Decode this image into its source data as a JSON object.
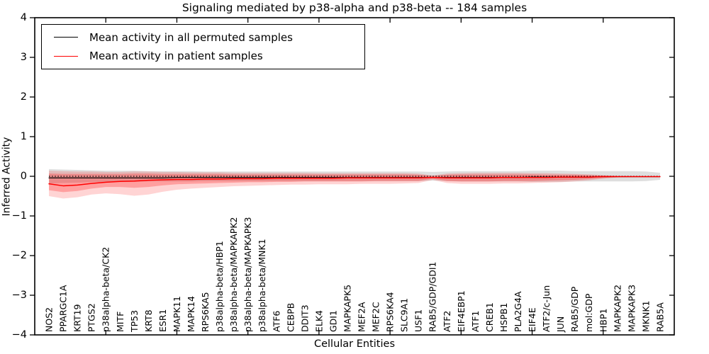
{
  "chart_data": {
    "type": "line",
    "title": "Signaling mediated by p38-alpha and p38-beta -- 184 samples",
    "xlabel": "Cellular Entities",
    "ylabel": "Inferred Activity",
    "ylim": [
      -4,
      4
    ],
    "ytick_values": [
      4,
      3,
      2,
      1,
      0,
      -1,
      -2,
      -3,
      -4
    ],
    "ytick_labels": [
      "4",
      "3",
      "2",
      "1",
      "0",
      "−1",
      "−2",
      "−3",
      "−4"
    ],
    "x_axis_range": [
      0,
      45
    ],
    "x_minor_tick_positions": [
      5,
      10,
      15,
      20,
      25,
      30,
      35,
      40
    ],
    "grid": false,
    "legend_position": "upper left",
    "categories": [
      "NOS2",
      "PPARGC1A",
      "KRT19",
      "PTGS2",
      "p38alpha-beta/CK2",
      "MITF",
      "TP53",
      "KRT8",
      "ESR1",
      "MAPK11",
      "MAPK14",
      "RPS6KA5",
      "p38alpha-beta/HBP1",
      "p38alpha-beta/MAPKAPK2",
      "p38alpha-beta/MAPKAPK3",
      "p38alpha-beta/MNK1",
      "ATF6",
      "CEBPB",
      "DDIT3",
      "ELK4",
      "GDI1",
      "MAPKAPK5",
      "MEF2A",
      "MEF2C",
      "RPS6KA4",
      "SLC9A1",
      "USF1",
      "RAB5/GDP/GDI1",
      "ATF2",
      "EIF4EBP1",
      "ATF1",
      "CREB1",
      "HSPB1",
      "PLA2G4A",
      "EIF4E",
      "ATF2/c-Jun",
      "JUN",
      "RAB5/GDP",
      "mol:GDP",
      "HBP1",
      "MAPKAPK2",
      "MAPKAPK3",
      "MKNK1",
      "RAB5A"
    ],
    "series": [
      {
        "name": "Mean activity in all permuted samples",
        "color": "#000000",
        "style": "solid",
        "width": 1.2,
        "values": [
          -0.04,
          -0.04,
          -0.04,
          -0.04,
          -0.04,
          -0.04,
          -0.04,
          -0.04,
          -0.04,
          -0.03,
          -0.03,
          -0.03,
          -0.03,
          -0.03,
          -0.03,
          -0.03,
          -0.03,
          -0.03,
          -0.03,
          -0.03,
          -0.03,
          -0.03,
          -0.03,
          -0.03,
          -0.03,
          -0.03,
          -0.03,
          -0.03,
          -0.03,
          -0.03,
          -0.03,
          -0.03,
          -0.03,
          -0.03,
          -0.02,
          -0.02,
          -0.02,
          -0.02,
          -0.02,
          -0.01,
          -0.01,
          -0.01,
          -0.01,
          -0.01
        ]
      },
      {
        "name": "Mean activity in patient samples",
        "color": "#ff0000",
        "style": "solid",
        "width": 1.5,
        "values": [
          -0.19,
          -0.24,
          -0.22,
          -0.18,
          -0.15,
          -0.13,
          -0.12,
          -0.1,
          -0.09,
          -0.08,
          -0.08,
          -0.07,
          -0.07,
          -0.06,
          -0.06,
          -0.06,
          -0.05,
          -0.05,
          -0.05,
          -0.05,
          -0.05,
          -0.04,
          -0.04,
          -0.04,
          -0.04,
          -0.04,
          -0.04,
          -0.03,
          -0.04,
          -0.04,
          -0.04,
          -0.04,
          -0.03,
          -0.03,
          -0.03,
          -0.03,
          -0.02,
          -0.02,
          -0.02,
          -0.01,
          -0.01,
          -0.01,
          -0.01,
          -0.01
        ]
      }
    ],
    "bands": [
      {
        "name": "permuted-samples-range",
        "color": "rgba(0,0,0,0.13)",
        "high": [
          0.18,
          0.17,
          0.16,
          0.15,
          0.14,
          0.14,
          0.14,
          0.13,
          0.13,
          0.13,
          0.13,
          0.12,
          0.12,
          0.12,
          0.12,
          0.12,
          0.12,
          0.12,
          0.12,
          0.12,
          0.12,
          0.12,
          0.12,
          0.12,
          0.12,
          0.12,
          0.12,
          0.11,
          0.12,
          0.13,
          0.13,
          0.13,
          0.13,
          0.13,
          0.14,
          0.14,
          0.14,
          0.13,
          0.13,
          0.13,
          0.13,
          0.13,
          0.12,
          0.09
        ],
        "low": [
          -0.18,
          -0.17,
          -0.16,
          -0.15,
          -0.14,
          -0.14,
          -0.14,
          -0.13,
          -0.13,
          -0.13,
          -0.13,
          -0.12,
          -0.12,
          -0.12,
          -0.12,
          -0.12,
          -0.12,
          -0.12,
          -0.12,
          -0.12,
          -0.12,
          -0.12,
          -0.12,
          -0.12,
          -0.12,
          -0.12,
          -0.12,
          -0.11,
          -0.12,
          -0.13,
          -0.13,
          -0.13,
          -0.13,
          -0.13,
          -0.14,
          -0.14,
          -0.14,
          -0.13,
          -0.13,
          -0.13,
          -0.13,
          -0.13,
          -0.12,
          -0.09
        ]
      },
      {
        "name": "patient-samples-outer-band",
        "color": "rgba(255,0,0,0.17)",
        "high": [
          0.14,
          0.13,
          0.12,
          0.12,
          0.11,
          0.11,
          0.12,
          0.12,
          0.11,
          0.11,
          0.1,
          0.1,
          0.1,
          0.09,
          0.09,
          0.09,
          0.09,
          0.09,
          0.09,
          0.08,
          0.08,
          0.08,
          0.08,
          0.08,
          0.08,
          0.08,
          0.07,
          0.02,
          0.07,
          0.08,
          0.09,
          0.09,
          0.09,
          0.09,
          0.08,
          0.08,
          0.07,
          0.06,
          0.05,
          0.03,
          0.01,
          0.01,
          0.0,
          0.0
        ],
        "low": [
          -0.5,
          -0.56,
          -0.53,
          -0.46,
          -0.43,
          -0.45,
          -0.49,
          -0.46,
          -0.39,
          -0.34,
          -0.31,
          -0.29,
          -0.27,
          -0.25,
          -0.24,
          -0.23,
          -0.22,
          -0.21,
          -0.21,
          -0.2,
          -0.2,
          -0.2,
          -0.19,
          -0.19,
          -0.19,
          -0.18,
          -0.17,
          -0.09,
          -0.17,
          -0.19,
          -0.19,
          -0.19,
          -0.18,
          -0.18,
          -0.17,
          -0.16,
          -0.15,
          -0.13,
          -0.1,
          -0.06,
          -0.03,
          -0.02,
          -0.01,
          -0.01
        ]
      },
      {
        "name": "patient-samples-inner-band",
        "color": "rgba(255,0,0,0.25)",
        "high": [
          0.07,
          0.06,
          0.06,
          0.06,
          0.06,
          0.06,
          0.07,
          0.07,
          0.06,
          0.06,
          0.06,
          0.06,
          0.06,
          0.05,
          0.05,
          0.05,
          0.05,
          0.05,
          0.05,
          0.05,
          0.05,
          0.05,
          0.05,
          0.05,
          0.05,
          0.05,
          0.04,
          0.01,
          0.04,
          0.05,
          0.05,
          0.05,
          0.05,
          0.05,
          0.05,
          0.04,
          0.04,
          0.04,
          0.03,
          0.02,
          0.01,
          0.0,
          0.0,
          0.0
        ],
        "low": [
          -0.35,
          -0.4,
          -0.37,
          -0.31,
          -0.27,
          -0.27,
          -0.29,
          -0.27,
          -0.23,
          -0.2,
          -0.19,
          -0.18,
          -0.17,
          -0.16,
          -0.15,
          -0.15,
          -0.14,
          -0.14,
          -0.13,
          -0.13,
          -0.13,
          -0.13,
          -0.13,
          -0.12,
          -0.12,
          -0.12,
          -0.12,
          -0.06,
          -0.12,
          -0.13,
          -0.13,
          -0.13,
          -0.12,
          -0.12,
          -0.12,
          -0.11,
          -0.1,
          -0.09,
          -0.07,
          -0.04,
          -0.02,
          -0.01,
          -0.01,
          -0.01
        ]
      }
    ],
    "zero_line": {
      "value": 0,
      "style": "dotted",
      "color": "#000000"
    }
  },
  "legend": {
    "entries": [
      {
        "label": "Mean activity in all permuted samples",
        "color": "#000000"
      },
      {
        "label": "Mean activity in patient samples",
        "color": "#ff0000"
      }
    ]
  }
}
